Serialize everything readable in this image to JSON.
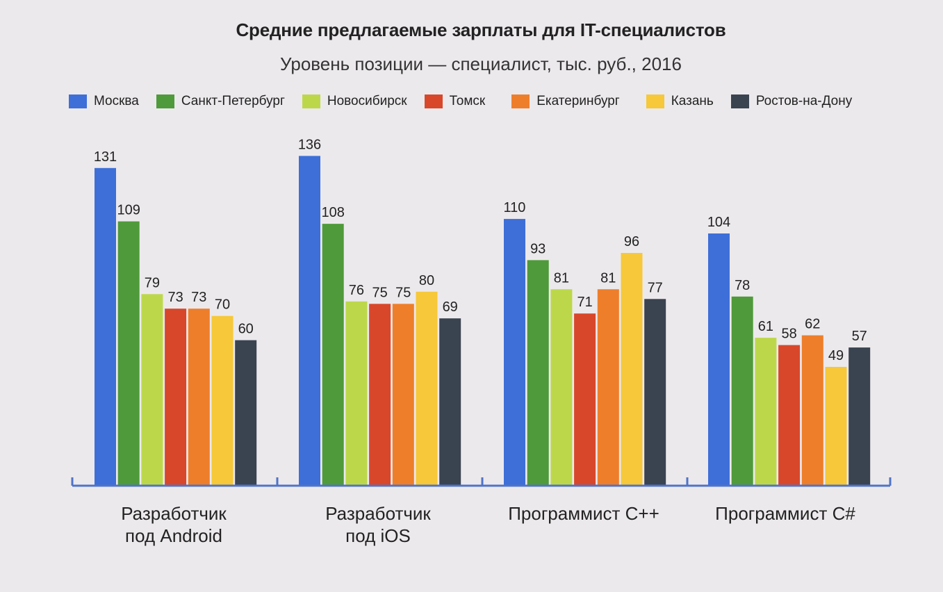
{
  "chart_data": {
    "type": "bar",
    "title": "Средние предлагаемые зарплаты для IT-специалистов",
    "subtitle": "Уровень позиции — специалист, тыс. руб., 2016",
    "categories": [
      "Разработчик\nпод Android",
      "Разработчик\nпод iOS",
      "Программист С++",
      "Программист С#"
    ],
    "series": [
      {
        "name": "Москва",
        "color": "#3e6fd8",
        "values": [
          131,
          136,
          110,
          104
        ]
      },
      {
        "name": "Санкт-Петербург",
        "color": "#4f9a3a",
        "values": [
          109,
          108,
          93,
          78
        ]
      },
      {
        "name": "Новосибирск",
        "color": "#bcd84a",
        "values": [
          79,
          76,
          81,
          61
        ]
      },
      {
        "name": "Томск",
        "color": "#d8472a",
        "values": [
          73,
          75,
          71,
          58
        ]
      },
      {
        "name": "Екатеринбург",
        "color": "#ee7e2a",
        "values": [
          73,
          75,
          81,
          62
        ]
      },
      {
        "name": "Казань",
        "color": "#f6c83a",
        "values": [
          70,
          80,
          96,
          49
        ]
      },
      {
        "name": "Ростов-на-Дону",
        "color": "#3a4350",
        "values": [
          60,
          69,
          77,
          57
        ]
      }
    ],
    "ylim": [
      0,
      140
    ],
    "legend": "top",
    "grid": false,
    "axis_color": "#4f73c8"
  }
}
